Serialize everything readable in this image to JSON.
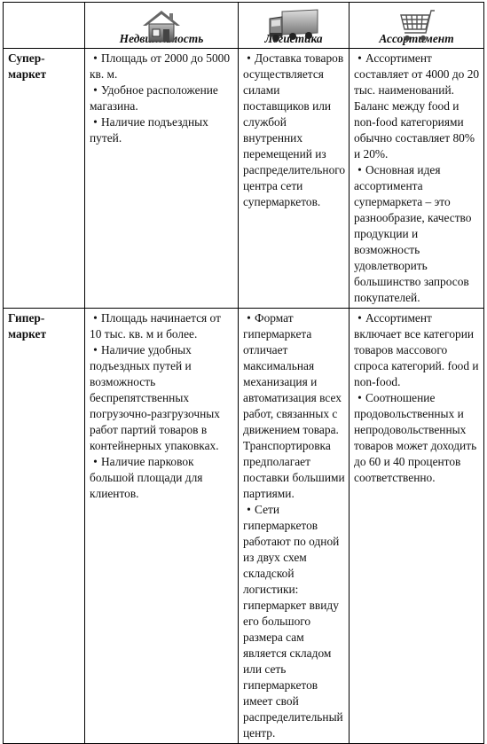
{
  "header": {
    "col1": "",
    "col2": "Недвижимость",
    "col3": "Логистика",
    "col4": "Ассортимент",
    "icons": [
      "house-icon",
      "truck-icon",
      "shopping-cart-icon"
    ]
  },
  "rows": [
    {
      "title_line1": "Супер-",
      "title_line2": "маркет",
      "realty": [
        "Площадь от 2000 до 5000 кв. м.",
        "Удобное расположение магазина.",
        "Наличие подъездных путей."
      ],
      "logistics": [
        "Доставка товаров осуществляется силами поставщиков или службой внутренних перемещений из распределительного центра сети супермаркетов."
      ],
      "assortment": [
        "Ассортимент составляет от 4000 до 20 тыс. наименований. Баланс между food и non-food категориями обычно составляет 80% и 20%.",
        "Основная идея ассортимента супермаркета – это разнообразие, качество продукции и возможность удовлетворить большинство запросов покупателей."
      ]
    },
    {
      "title_line1": "Гипер-",
      "title_line2": "маркет",
      "realty": [
        "Площадь начинается от 10 тыс. кв. м и более.",
        "Наличие удобных подъездных путей и возможность беспрепятственных погрузочно-разгрузочных работ партий товаров в контейнерных упаковках.",
        "Наличие парковок большой площади для клиентов."
      ],
      "logistics": [
        "Формат гипермаркета отличает максимальная механизация и автоматизация всех работ, связанных с движением товара. Транспортировка предполагает поставки большими партиями.",
        "Сети гипермаркетов работают по одной из двух схем складской логистики: гипермаркет ввиду его большого размера сам является складом или сеть гипермаркетов имеет свой распределительный центр."
      ],
      "assortment": [
        "Ассортимент включает все категории товаров массового спроса категорий. food и non-food.",
        "Соотношение продовольственных и непродовольственных товаров может доходить до 60 и 40 процентов соответственно."
      ]
    }
  ]
}
